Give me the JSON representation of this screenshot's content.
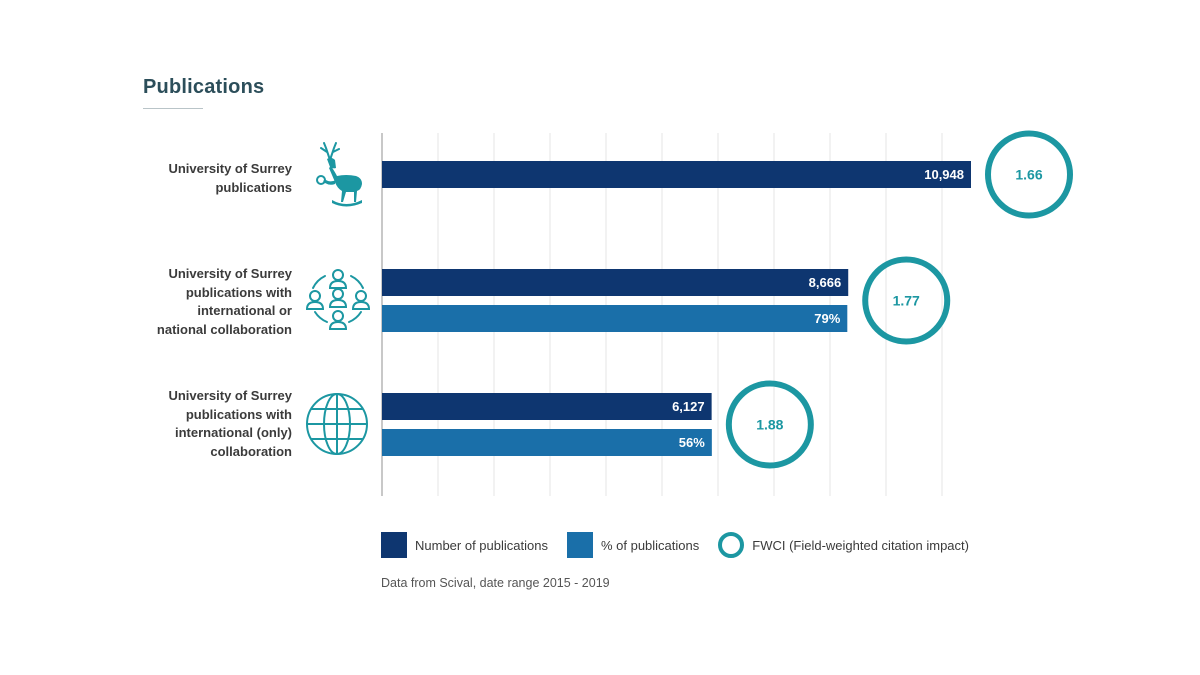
{
  "title": "Publications",
  "colors": {
    "number_bar": "#0e3670",
    "percent_bar": "#1a6fa9",
    "fwci_ring": "#1c97a2",
    "grid": "#e4e4e4",
    "axis": "#b5b5b5"
  },
  "rows": [
    {
      "label": "University of Surrey\npublications",
      "icon": "stag-icon"
    },
    {
      "label": "University of Surrey\npublications with\ninternational or\nnational collaboration",
      "icon": "people-network-icon"
    },
    {
      "label": "University of Surrey\npublications with\ninternational (only)\ncollaboration",
      "icon": "globe-icon"
    }
  ],
  "chart_data": {
    "type": "bar",
    "orientation": "horizontal",
    "categories": [
      "University of Surrey publications",
      "University of Surrey publications with international or national collaboration",
      "University of Surrey publications with international (only) collaboration"
    ],
    "series": [
      {
        "name": "Number of publications",
        "values": [
          10948,
          8666,
          6127
        ],
        "labels": [
          "10,948",
          "8,666",
          "6,127"
        ]
      },
      {
        "name": "% of publications",
        "values": [
          null,
          79,
          56
        ],
        "labels": [
          "",
          "79%",
          "56%"
        ]
      }
    ],
    "fwci": {
      "name": "FWCI (Field-weighted citation impact)",
      "values": [
        1.66,
        1.77,
        1.88
      ],
      "labels": [
        "1.66",
        "1.77",
        "1.88"
      ]
    },
    "xlim": [
      0,
      11000
    ],
    "grid": true,
    "legend_position": "bottom"
  },
  "legend": [
    {
      "label": "Number of publications",
      "type": "swatch",
      "color": "#0e3670"
    },
    {
      "label": "% of publications",
      "type": "swatch",
      "color": "#1a6fa9"
    },
    {
      "label": "FWCI (Field-weighted citation impact)",
      "type": "ring",
      "color": "#1c97a2"
    }
  ],
  "source_note": "Data from Scival, date range 2015 - 2019"
}
